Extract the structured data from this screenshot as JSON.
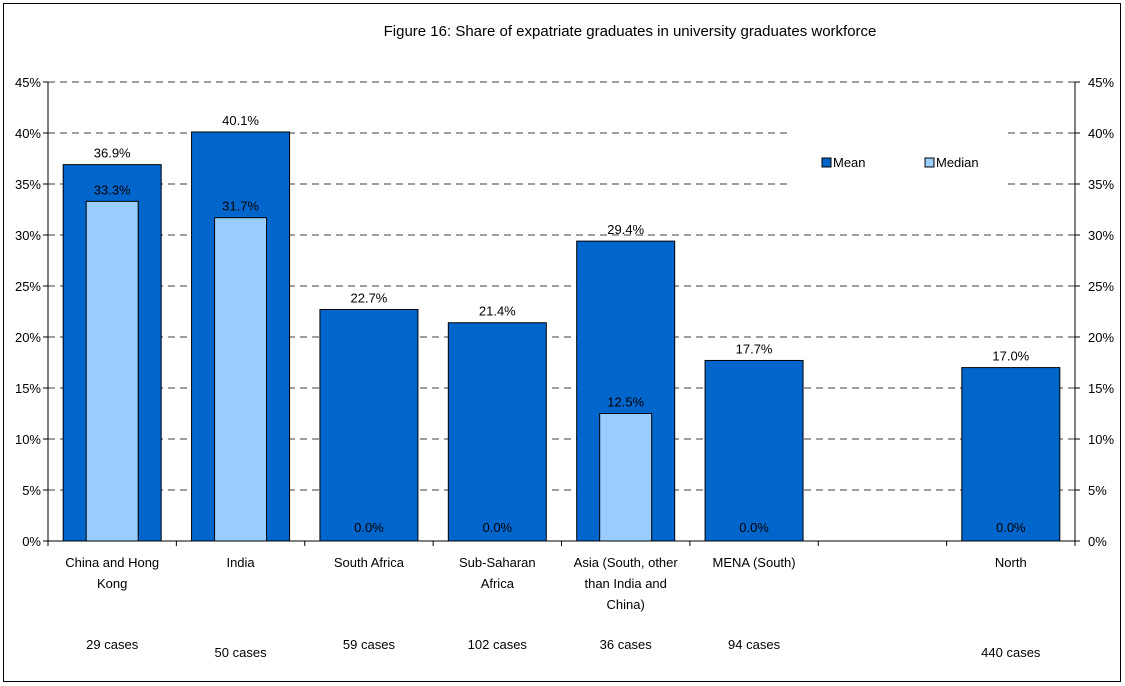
{
  "chart_data": {
    "type": "bar",
    "title": "Figure 16: Share of expatriate graduates in university graduates workforce",
    "xlabel": "",
    "ylabel": "",
    "ylim": [
      0,
      45
    ],
    "yticks": [
      "0%",
      "5%",
      "10%",
      "15%",
      "20%",
      "25%",
      "30%",
      "35%",
      "40%",
      "45%"
    ],
    "categories": [
      [
        "China and Hong",
        "Kong"
      ],
      [
        "India"
      ],
      [
        "South Africa"
      ],
      [
        "Sub-Saharan",
        "Africa"
      ],
      [
        "Asia (South, other",
        "than India and",
        "China)"
      ],
      [
        "MENA (South)"
      ],
      [
        ""
      ],
      [
        "North"
      ]
    ],
    "cases": [
      "29 cases",
      "50 cases",
      "59 cases",
      "102 cases",
      "36 cases",
      "94 cases",
      "",
      "440 cases"
    ],
    "series": [
      {
        "name": "Mean",
        "color": "#0066CC",
        "values": [
          36.9,
          40.1,
          22.7,
          21.4,
          29.4,
          17.7,
          null,
          17.0
        ],
        "labels": [
          "36.9%",
          "40.1%",
          "22.7%",
          "21.4%",
          "29.4%",
          "17.7%",
          "",
          "17.0%"
        ]
      },
      {
        "name": "Median",
        "color": "#99CCFF",
        "values": [
          33.3,
          31.7,
          0.0,
          0.0,
          12.5,
          0.0,
          null,
          0.0
        ],
        "labels": [
          "33.3%",
          "31.7%",
          "0.0%",
          "0.0%",
          "12.5%",
          "0.0%",
          "",
          "0.0%"
        ]
      }
    ],
    "grid": true,
    "legend": "top-right"
  }
}
